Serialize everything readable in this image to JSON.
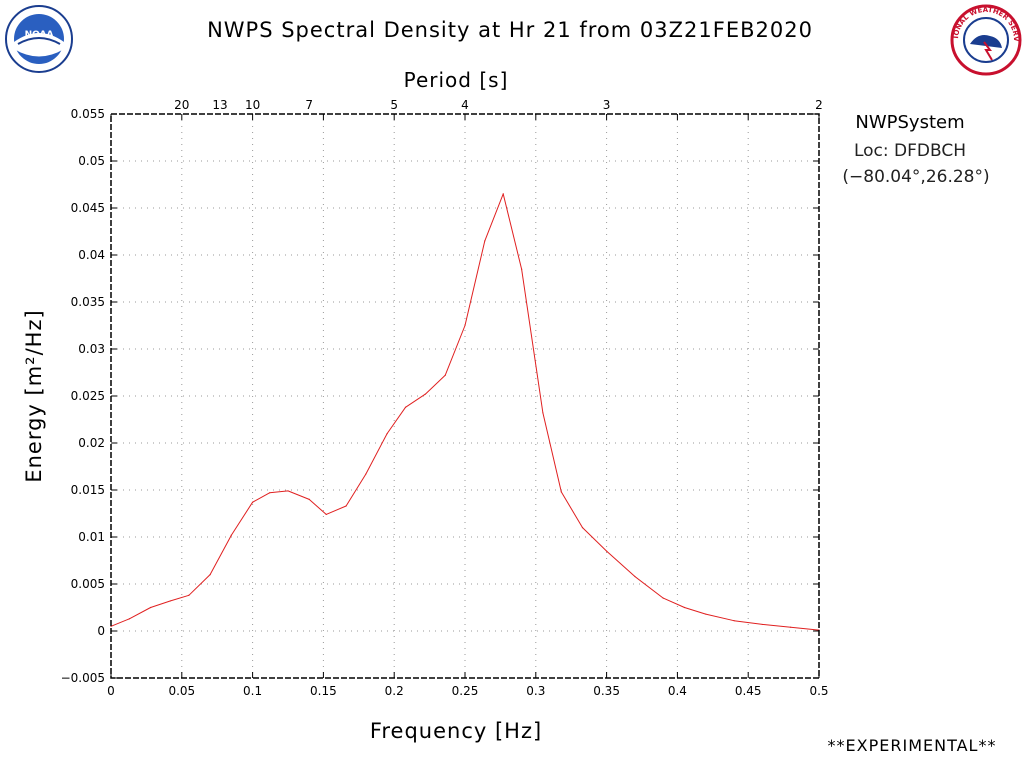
{
  "header": {
    "title": "NWPS Spectral Density at Hr 21 from 03Z21FEB2020"
  },
  "logos": {
    "noaa_text": "NOAA",
    "nws_text": "NATIONAL WEATHER SERVICE"
  },
  "info": {
    "system": "NWPSystem",
    "location": "Loc: DFDBCH",
    "coords": "(−80.04°,26.28°)"
  },
  "footer": {
    "experimental": "**EXPERIMENTAL**"
  },
  "chart_data": {
    "type": "line",
    "title": "NWPS Spectral Density at Hr 21 from 03Z21FEB2020",
    "xlabel": "Frequency [Hz]",
    "ylabel": "Energy [m²/Hz]",
    "top_axis_label": "Period [s]",
    "xlim": [
      0,
      0.5
    ],
    "ylim": [
      -0.005,
      0.055
    ],
    "xticks": [
      0,
      0.05,
      0.1,
      0.15,
      0.2,
      0.25,
      0.3,
      0.35,
      0.4,
      0.45,
      0.5
    ],
    "xtick_labels": [
      "0",
      "0.05",
      "0.1",
      "0.15",
      "0.2",
      "0.25",
      "0.3",
      "0.35",
      "0.4",
      "0.45",
      "0.5"
    ],
    "yticks": [
      -0.005,
      0,
      0.005,
      0.01,
      0.015,
      0.02,
      0.025,
      0.03,
      0.035,
      0.04,
      0.045,
      0.05,
      0.055
    ],
    "ytick_labels": [
      "−0.005",
      "0",
      "0.005",
      "0.01",
      "0.015",
      "0.02",
      "0.025",
      "0.03",
      "0.035",
      "0.04",
      "0.045",
      "0.05",
      "0.055"
    ],
    "period_ticks": [
      {
        "label": "20",
        "freq": 0.05
      },
      {
        "label": "13",
        "freq": 0.077
      },
      {
        "label": "10",
        "freq": 0.1
      },
      {
        "label": "7",
        "freq": 0.14
      },
      {
        "label": "5",
        "freq": 0.2
      },
      {
        "label": "4",
        "freq": 0.25
      },
      {
        "label": "3",
        "freq": 0.35
      },
      {
        "label": "2",
        "freq": 0.5
      }
    ],
    "grid": true,
    "line_color": "#e02020",
    "series": [
      {
        "x": [
          0,
          0.013,
          0.028,
          0.042,
          0.055,
          0.07,
          0.085,
          0.1,
          0.112,
          0.125,
          0.14,
          0.152,
          0.166,
          0.18,
          0.195,
          0.208,
          0.222,
          0.236,
          0.25,
          0.264,
          0.277,
          0.29,
          0.305,
          0.318,
          0.333,
          0.35,
          0.37,
          0.39,
          0.405,
          0.42,
          0.44,
          0.46,
          0.48,
          0.5
        ],
        "y": [
          0.0005,
          0.0013,
          0.0025,
          0.0032,
          0.0038,
          0.006,
          0.0102,
          0.0137,
          0.0147,
          0.0149,
          0.014,
          0.0124,
          0.0133,
          0.0167,
          0.021,
          0.0238,
          0.0252,
          0.0272,
          0.0325,
          0.0415,
          0.0465,
          0.0385,
          0.0232,
          0.0148,
          0.011,
          0.0085,
          0.0058,
          0.0035,
          0.0025,
          0.0018,
          0.0011,
          0.0007,
          0.0004,
          0.0001
        ]
      }
    ]
  }
}
